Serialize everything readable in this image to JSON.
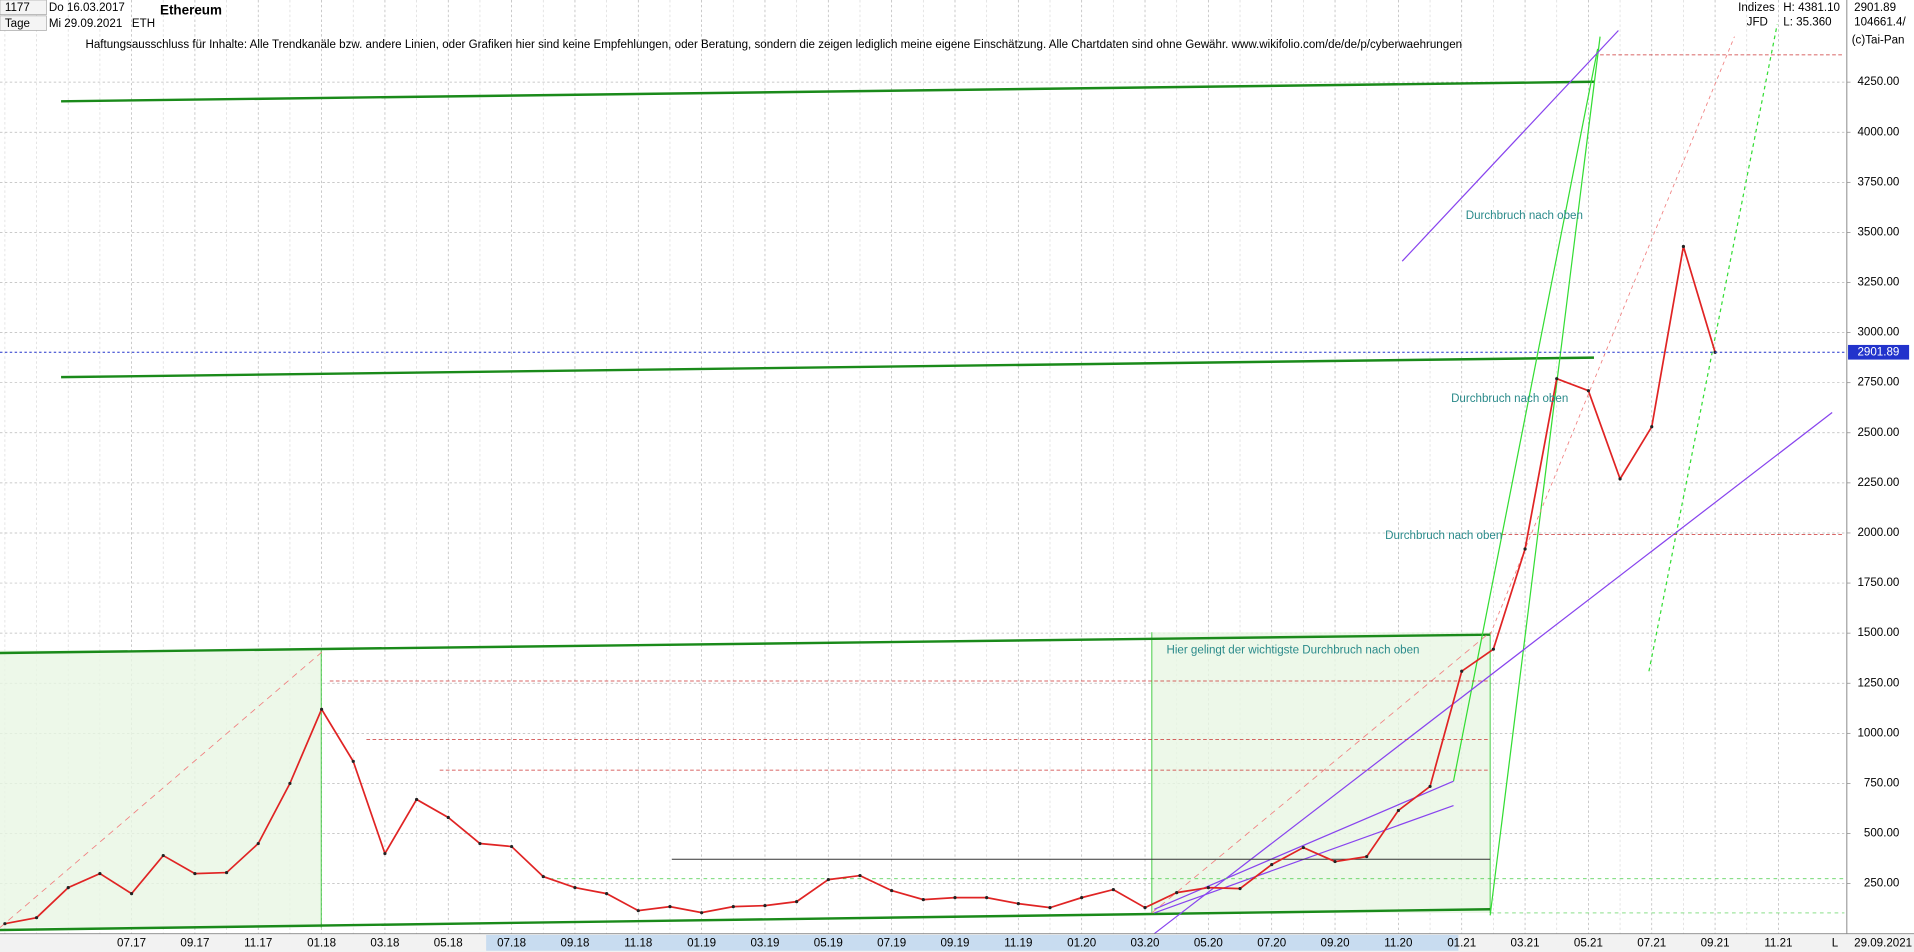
{
  "header": {
    "count": "1177",
    "start_date": "Do 16.03.2017",
    "period": "Tage",
    "end_date": "Mi 29.09.2021",
    "symbol": "ETH",
    "name": "Ethereum",
    "index_label": "Indizes",
    "broker": "JFD",
    "high": "H: 4381.10",
    "low": "L: 35.360",
    "value2": "104661.4/",
    "copyright": "(c)Tai-Pan",
    "disclaimer": "Haftungsausschluss für Inhalte: Alle Trendkanäle bzw. andere Linien, oder Grafiken hier sind keine Empfehlungen, oder Beratung, sondern die zeigen lediglich meine eigene Einschätzung. Alle Chartdaten sind ohne Gewähr.  www.wikifolio.com/de/de/p/cyberwaehrungen",
    "end_label": "29.09.2021",
    "scale_label": "L"
  },
  "chart_data": {
    "type": "line",
    "color": "#e02424",
    "categories": [
      null,
      null,
      null,
      null,
      "07.17",
      null,
      "09.17",
      null,
      "11.17",
      null,
      "01.18",
      null,
      "03.18",
      null,
      "05.18",
      null,
      "07.18",
      null,
      "09.18",
      null,
      "11.18",
      null,
      "01.19",
      null,
      "03.19",
      null,
      "05.19",
      null,
      "07.19",
      null,
      "09.19",
      null,
      "11.19",
      null,
      "01.20",
      null,
      "03.20",
      null,
      "05.20",
      null,
      "07.20",
      null,
      "09.20",
      null,
      "11.20",
      null,
      "01.21",
      null,
      "03.21",
      null,
      "05.21",
      null,
      "07.21",
      null,
      "09.21",
      null,
      "11.21"
    ],
    "values": [
      50,
      80,
      230,
      300,
      200,
      390,
      300,
      305,
      450,
      750,
      1120,
      860,
      400,
      670,
      580,
      450,
      435,
      285,
      230,
      200,
      115,
      135,
      105,
      135,
      140,
      160,
      270,
      290,
      215,
      170,
      180,
      180,
      150,
      130,
      180,
      220,
      130,
      205,
      230,
      225,
      345,
      430,
      360,
      385,
      615,
      735,
      1310,
      1420,
      1920,
      2770,
      2710,
      2270,
      2530,
      3430,
      2901.89,
      null,
      null
    ],
    "ylim": [
      0,
      4660
    ],
    "yticks": [
      {
        "value": 250,
        "label": "250.00"
      },
      {
        "value": 500,
        "label": "500.00"
      },
      {
        "value": 750,
        "label": "750.00"
      },
      {
        "value": 1000,
        "label": "1000.00"
      },
      {
        "value": 1250,
        "label": "1250.00"
      },
      {
        "value": 1500,
        "label": "1500.00"
      },
      {
        "value": 1750,
        "label": "1750.00"
      },
      {
        "value": 2000,
        "label": "2000.00"
      },
      {
        "value": 2250,
        "label": "2250.00"
      },
      {
        "value": 2500,
        "label": "2500.00"
      },
      {
        "value": 2750,
        "label": "2750.00"
      },
      {
        "value": 3000,
        "label": "3000.00"
      },
      {
        "value": 3250,
        "label": "3250.00"
      },
      {
        "value": 3500,
        "label": "3500.00"
      },
      {
        "value": 3750,
        "label": "3750.00"
      },
      {
        "value": 4000,
        "label": "4000.00"
      },
      {
        "value": 4250,
        "label": "4250.00"
      }
    ],
    "grid": true,
    "last_price": 2901.89,
    "annotations": [
      "Durchbruch nach oben",
      "Durchbruch nach oben",
      "Durchbruch nach oben",
      "Hier gelingt der wichtigste Durchbruch nach oben"
    ]
  }
}
